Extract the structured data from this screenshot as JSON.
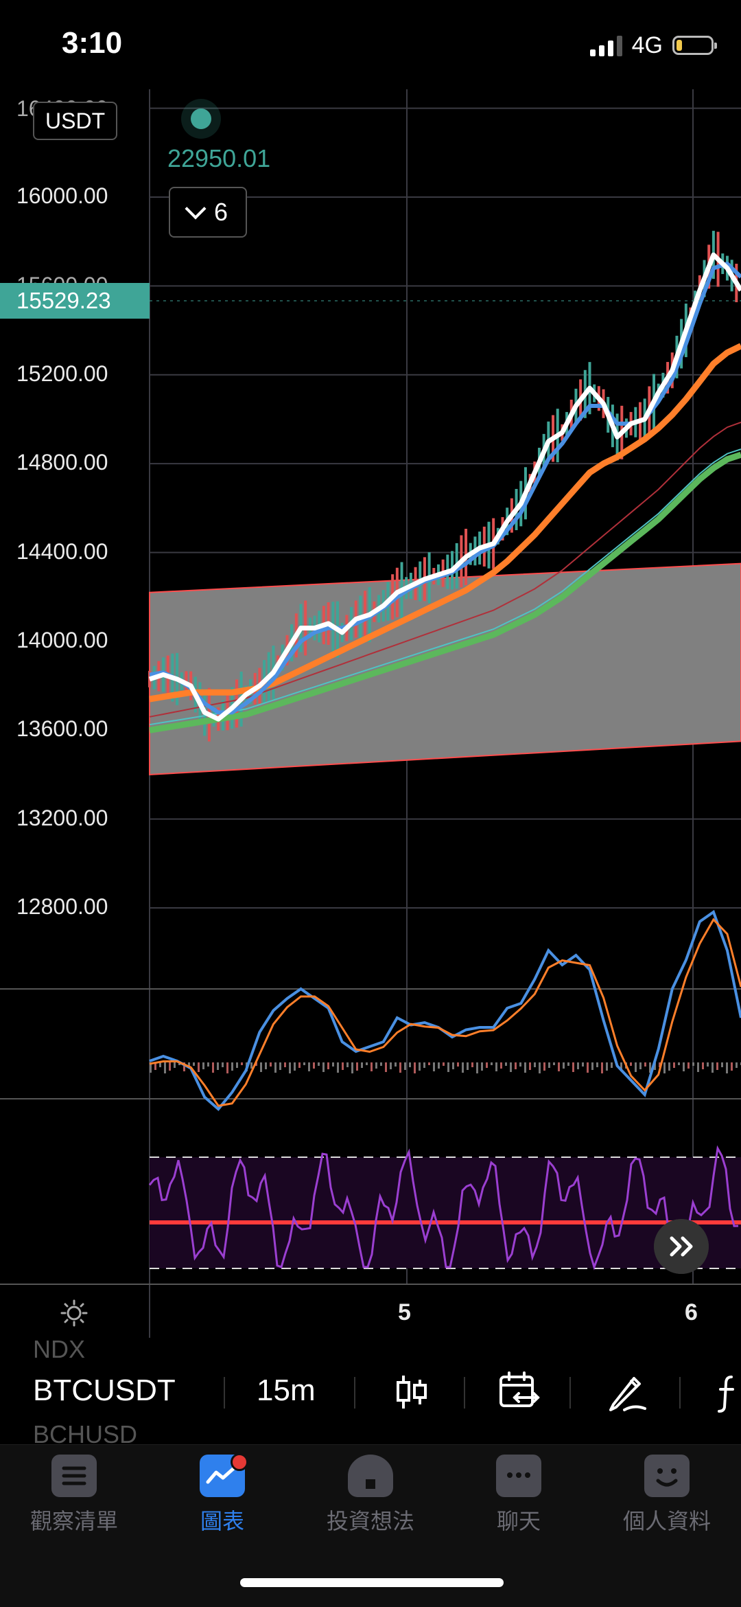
{
  "status_bar": {
    "time": "3:10",
    "network": "4G"
  },
  "chart": {
    "currency": "USDT",
    "live_price": "22950.01",
    "indicator_count": "6",
    "current_price": "15529.23",
    "partial_top_label": "16400.00",
    "partial_second_label": "15600.00",
    "price_levels": [
      "16000.00",
      "15200.00",
      "14800.00",
      "14400.00",
      "14000.00",
      "13600.00",
      "13200.00",
      "12800.00"
    ],
    "date_labels": [
      "5",
      "6"
    ],
    "colors": {
      "accent": "#3fa597",
      "ema_fast": "#ff7f2a",
      "ema_slow": "#5cb85c",
      "price": "#ffffff",
      "avg": "#4a90e2",
      "rsi": "#9b3fd1",
      "channel": "#ff4d4d"
    }
  },
  "chart_data": {
    "type": "line",
    "ylim": [
      12400,
      16400
    ],
    "y_ticks": [
      16000,
      15200,
      14800,
      14400,
      14000,
      13600,
      13200,
      12800
    ],
    "x_ticks": [
      "5",
      "6"
    ],
    "channel": {
      "upper": [
        14220,
        14350
      ],
      "lower": [
        13400,
        13550
      ]
    },
    "series": [
      {
        "values": [
          13830,
          13850,
          13830,
          13800,
          13680,
          13650,
          13700,
          13760,
          13800,
          13860,
          13960,
          14060,
          14060,
          14080,
          14040,
          14100,
          14120,
          14160,
          14220,
          14250,
          14280,
          14300,
          14320,
          14380,
          14420,
          14440,
          14540,
          14620,
          14760,
          14900,
          14940,
          15060,
          15140,
          15070,
          14920,
          14980,
          15000,
          15120,
          15220,
          15400,
          15580,
          15740,
          15680,
          15580
        ]
      },
      {
        "values": [
          13850,
          13860,
          13830,
          13790,
          13720,
          13680,
          13680,
          13720,
          13770,
          13830,
          13920,
          14000,
          14040,
          14060,
          14060,
          14080,
          14110,
          14150,
          14200,
          14240,
          14270,
          14290,
          14310,
          14350,
          14400,
          14430,
          14500,
          14580,
          14700,
          14820,
          14890,
          14980,
          15060,
          15060,
          14980,
          14980,
          15000,
          15080,
          15180,
          15340,
          15520,
          15680,
          15700,
          15640
        ]
      },
      {
        "values": [
          13740,
          13750,
          13760,
          13770,
          13770,
          13770,
          13770,
          13780,
          13790,
          13810,
          13840,
          13870,
          13900,
          13930,
          13960,
          13990,
          14020,
          14050,
          14080,
          14110,
          14140,
          14170,
          14200,
          14230,
          14270,
          14310,
          14360,
          14420,
          14480,
          14550,
          14620,
          14690,
          14760,
          14800,
          14830,
          14870,
          14910,
          14960,
          15020,
          15090,
          15170,
          15250,
          15300,
          15330
        ]
      },
      {
        "values": [
          13600,
          13610,
          13620,
          13630,
          13640,
          13650,
          13660,
          13670,
          13690,
          13710,
          13730,
          13750,
          13770,
          13790,
          13810,
          13830,
          13850,
          13870,
          13890,
          13910,
          13930,
          13950,
          13970,
          13990,
          14010,
          14030,
          14060,
          14090,
          14120,
          14160,
          14200,
          14250,
          14300,
          14350,
          14400,
          14450,
          14500,
          14550,
          14610,
          14670,
          14730,
          14780,
          14820,
          14840
        ]
      }
    ]
  },
  "toolbar": {
    "symbol": "BTCUSDT",
    "interval": "15m",
    "ghost_above": "NDX",
    "ghost_below": "BCHUSD"
  },
  "tabs": [
    {
      "label": "觀察清單"
    },
    {
      "label": "圖表"
    },
    {
      "label": "投資想法"
    },
    {
      "label": "聊天"
    },
    {
      "label": "個人資料"
    }
  ]
}
